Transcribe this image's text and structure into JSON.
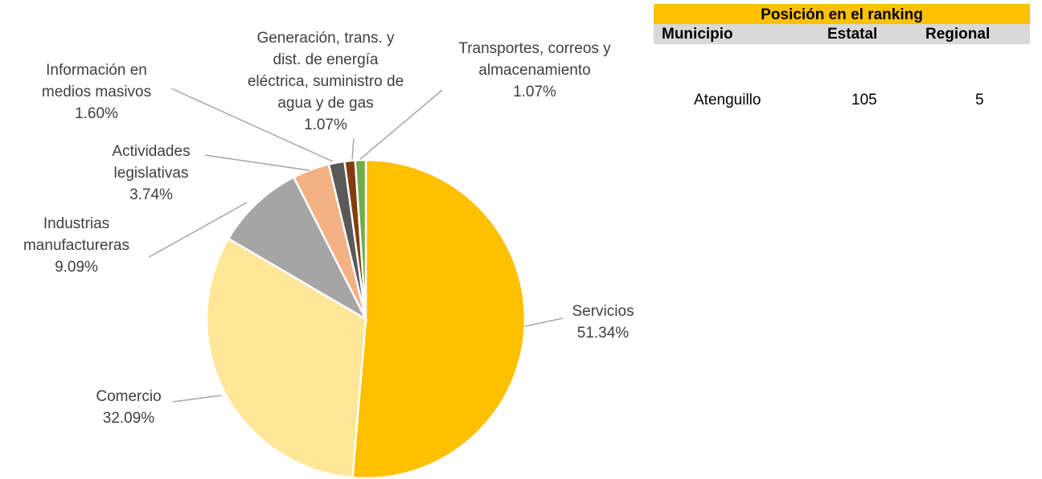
{
  "chart_data": {
    "type": "pie",
    "categories": [
      "Servicios",
      "Comercio",
      "Industrias manufactureras",
      "Actividades legislativas",
      "Información en medios masivos",
      "Generación, trans. y dist. de energía eléctrica, suministro de agua y de gas",
      "Transportes, correos y almacenamiento"
    ],
    "values": [
      51.34,
      32.09,
      9.09,
      3.74,
      1.6,
      1.07,
      1.07
    ],
    "value_labels": [
      "51.34%",
      "32.09%",
      "9.09%",
      "3.74%",
      "1.60%",
      "1.07%",
      "1.07%"
    ],
    "colors": [
      "#FFC000",
      "#FFE699",
      "#A5A5A5",
      "#F4B183",
      "#595959",
      "#843C0C",
      "#70AD47"
    ]
  },
  "table": {
    "title": "Posición en el ranking",
    "header": [
      "Municipio",
      "Estatal",
      "Regional"
    ],
    "rows": [
      [
        "Atenguillo",
        105,
        5
      ]
    ]
  }
}
